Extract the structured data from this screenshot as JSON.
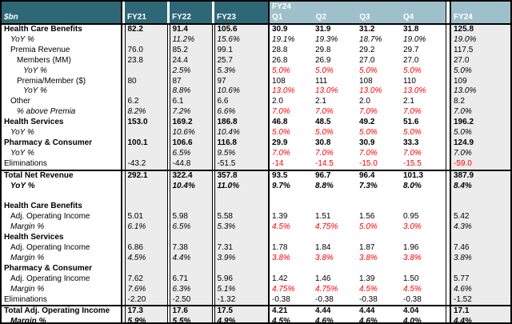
{
  "colors": {
    "header_dark": "#2E6775",
    "header_light": "#9EC0CB",
    "shaded_column": "#ECECEC",
    "assumption_red": "#FF0000",
    "border_black": "#000000",
    "header_text": "#FFFFFF"
  },
  "chart_data": {
    "type": "table",
    "title": "",
    "unit_label": "$bn",
    "header": {
      "years": [
        "FY21",
        "FY22",
        "FY23"
      ],
      "fy24_group": "FY24",
      "quarters": [
        "Q1",
        "Q2",
        "Q3",
        "Q4"
      ],
      "fy24_total": "FY24"
    },
    "columns": [
      "FY21",
      "FY22",
      "FY23",
      "FY24 Q1",
      "FY24 Q2",
      "FY24 Q3",
      "FY24 Q4",
      "FY24"
    ],
    "rows": [
      {
        "label": "Health Care Benefits",
        "indent": 0,
        "bold": true,
        "italic": false,
        "topBorder": false,
        "values": [
          "82.2",
          "91.4",
          "105.6",
          "30.9",
          "31.9",
          "31.2",
          "31.8",
          "125.8"
        ],
        "red": []
      },
      {
        "label": "YoY %",
        "indent": 1,
        "bold": false,
        "italic": true,
        "topBorder": false,
        "values": [
          "",
          "11.2%",
          "15.6%",
          "19.1%",
          "19.3%",
          "18.7%",
          "19.0%",
          "19.0%"
        ],
        "red": []
      },
      {
        "label": "Premia Revenue",
        "indent": 1,
        "bold": false,
        "italic": false,
        "topBorder": false,
        "values": [
          "76.0",
          "85.2",
          "99.1",
          "28.8",
          "29.8",
          "29.2",
          "29.7",
          "117.5"
        ],
        "red": []
      },
      {
        "label": "Members (MM)",
        "indent": 2,
        "bold": false,
        "italic": false,
        "topBorder": false,
        "values": [
          "23.8",
          "24.4",
          "25.7",
          "26.8",
          "26.9",
          "27.0",
          "27.0",
          "27.0"
        ],
        "red": []
      },
      {
        "label": "YoY %",
        "indent": 3,
        "bold": false,
        "italic": true,
        "topBorder": false,
        "values": [
          "",
          "2.5%",
          "5.3%",
          "5.0%",
          "5.0%",
          "5.0%",
          "5.0%",
          "5.0%"
        ],
        "red": [
          3,
          4,
          5,
          6
        ]
      },
      {
        "label": "Premia/Member ($)",
        "indent": 2,
        "bold": false,
        "italic": false,
        "topBorder": false,
        "values": [
          "80",
          "87",
          "97",
          "108",
          "111",
          "108",
          "110",
          "109"
        ],
        "red": []
      },
      {
        "label": "YoY %",
        "indent": 3,
        "bold": false,
        "italic": true,
        "topBorder": false,
        "values": [
          "",
          "8.8%",
          "10.6%",
          "13.0%",
          "13.0%",
          "13.0%",
          "13.0%",
          "13.0%"
        ],
        "red": [
          3,
          4,
          5,
          6
        ]
      },
      {
        "label": "Other",
        "indent": 1,
        "bold": false,
        "italic": false,
        "topBorder": false,
        "values": [
          "6.2",
          "6.1",
          "6.6",
          "2.0",
          "2.1",
          "2.0",
          "2.1",
          "8.2"
        ],
        "red": []
      },
      {
        "label": "% above Premia",
        "indent": 2,
        "bold": false,
        "italic": true,
        "topBorder": false,
        "values": [
          "8.2%",
          "7.2%",
          "6.6%",
          "7.0%",
          "7.0%",
          "7.0%",
          "7.0%",
          "7.0%"
        ],
        "red": [
          3,
          4,
          5,
          6
        ]
      },
      {
        "label": "Health Services",
        "indent": 0,
        "bold": true,
        "italic": false,
        "topBorder": false,
        "values": [
          "153.0",
          "169.2",
          "186.8",
          "46.8",
          "48.5",
          "49.2",
          "51.6",
          "196.2"
        ],
        "red": []
      },
      {
        "label": "YoY %",
        "indent": 1,
        "bold": false,
        "italic": true,
        "topBorder": false,
        "values": [
          "",
          "10.6%",
          "10.4%",
          "5.0%",
          "5.0%",
          "5.0%",
          "5.0%",
          "5.0%"
        ],
        "red": [
          3,
          4,
          5,
          6
        ]
      },
      {
        "label": "Pharmacy & Consumer",
        "indent": 0,
        "bold": true,
        "italic": false,
        "topBorder": false,
        "values": [
          "100.1",
          "106.6",
          "116.8",
          "29.9",
          "30.8",
          "30.9",
          "33.3",
          "124.9"
        ],
        "red": []
      },
      {
        "label": "YoY %",
        "indent": 1,
        "bold": false,
        "italic": true,
        "topBorder": false,
        "values": [
          "",
          "6.5%",
          "9.5%",
          "7.0%",
          "7.0%",
          "7.0%",
          "7.0%",
          "7.0%"
        ],
        "red": [
          3,
          4,
          5,
          6
        ]
      },
      {
        "label": "Eliminations",
        "indent": 0,
        "bold": false,
        "italic": false,
        "topBorder": false,
        "values": [
          "-43.2",
          "-44.8",
          "-51.5",
          "-14",
          "-14.5",
          "-15.0",
          "-15.5",
          "-59.0"
        ],
        "red": [
          3,
          4,
          5,
          6,
          7
        ]
      },
      {
        "label": "Total Net Revenue",
        "indent": 0,
        "bold": true,
        "italic": false,
        "topBorder": true,
        "values": [
          "292.1",
          "322.4",
          "357.8",
          "93.5",
          "96.7",
          "96.4",
          "101.3",
          "387.9"
        ],
        "red": []
      },
      {
        "label": "YoY %",
        "indent": 1,
        "bold": true,
        "italic": true,
        "topBorder": false,
        "values": [
          "",
          "10.4%",
          "11.0%",
          "9.7%",
          "8.8%",
          "7.3%",
          "8.0%",
          "8.4%"
        ],
        "red": []
      },
      {
        "label": "",
        "indent": 0,
        "bold": false,
        "italic": false,
        "topBorder": false,
        "values": [
          "",
          "",
          "",
          "",
          "",
          "",
          "",
          ""
        ],
        "red": []
      },
      {
        "label": "Health Care Benefits",
        "indent": 0,
        "bold": true,
        "italic": false,
        "topBorder": false,
        "values": [
          "",
          "",
          "",
          "",
          "",
          "",
          "",
          ""
        ],
        "red": []
      },
      {
        "label": "Adj. Operating Income",
        "indent": 1,
        "bold": false,
        "italic": false,
        "topBorder": false,
        "values": [
          "5.01",
          "5.98",
          "5.58",
          "1.39",
          "1.51",
          "1.56",
          "0.95",
          "5.42"
        ],
        "red": []
      },
      {
        "label": "Margin %",
        "indent": 1,
        "bold": false,
        "italic": true,
        "topBorder": false,
        "values": [
          "6.1%",
          "6.5%",
          "5.3%",
          "4.5%",
          "4.75%",
          "5.0%",
          "3.0%",
          "4.3%"
        ],
        "red": [
          3,
          4,
          5,
          6
        ]
      },
      {
        "label": "Health Services",
        "indent": 0,
        "bold": true,
        "italic": false,
        "topBorder": false,
        "values": [
          "",
          "",
          "",
          "",
          "",
          "",
          "",
          ""
        ],
        "red": []
      },
      {
        "label": "Adj. Operating Income",
        "indent": 1,
        "bold": false,
        "italic": false,
        "topBorder": false,
        "values": [
          "6.86",
          "7.38",
          "7.31",
          "1.78",
          "1.84",
          "1.87",
          "1.96",
          "7.46"
        ],
        "red": []
      },
      {
        "label": "Margin %",
        "indent": 1,
        "bold": false,
        "italic": true,
        "topBorder": false,
        "values": [
          "4.5%",
          "4.4%",
          "3.9%",
          "3.8%",
          "3.8%",
          "3.8%",
          "3.8%",
          "3.8%"
        ],
        "red": [
          3,
          4,
          5,
          6
        ]
      },
      {
        "label": "Pharmacy & Consumer",
        "indent": 0,
        "bold": true,
        "italic": false,
        "topBorder": false,
        "values": [
          "",
          "",
          "",
          "",
          "",
          "",
          "",
          ""
        ],
        "red": []
      },
      {
        "label": "Adj. Operating Income",
        "indent": 1,
        "bold": false,
        "italic": false,
        "topBorder": false,
        "values": [
          "7.62",
          "6.71",
          "5.96",
          "1.42",
          "1.46",
          "1.39",
          "1.50",
          "5.77"
        ],
        "red": []
      },
      {
        "label": "Margin %",
        "indent": 1,
        "bold": false,
        "italic": true,
        "topBorder": false,
        "values": [
          "7.6%",
          "6.3%",
          "5.1%",
          "4.75%",
          "4.75%",
          "4.5%",
          "4.5%",
          "4.6%"
        ],
        "red": [
          3,
          4,
          5,
          6
        ]
      },
      {
        "label": "Eliminations",
        "indent": 0,
        "bold": false,
        "italic": false,
        "topBorder": false,
        "values": [
          "-2.20",
          "-2.50",
          "-1.32",
          "-0.38",
          "-0.38",
          "-0.38",
          "-0.38",
          "-1.52"
        ],
        "red": []
      },
      {
        "label": "Total Adj. Operating Income",
        "indent": 0,
        "bold": true,
        "italic": false,
        "topBorder": true,
        "values": [
          "17.3",
          "17.6",
          "17.5",
          "4.21",
          "4.44",
          "4.44",
          "4.04",
          "17.1"
        ],
        "red": []
      },
      {
        "label": "Margin %",
        "indent": 1,
        "bold": true,
        "italic": true,
        "topBorder": false,
        "values": [
          "5.9%",
          "5.5%",
          "4.9%",
          "4.5%",
          "4.6%",
          "4.6%",
          "4.0%",
          "4.4%"
        ],
        "red": []
      }
    ]
  }
}
